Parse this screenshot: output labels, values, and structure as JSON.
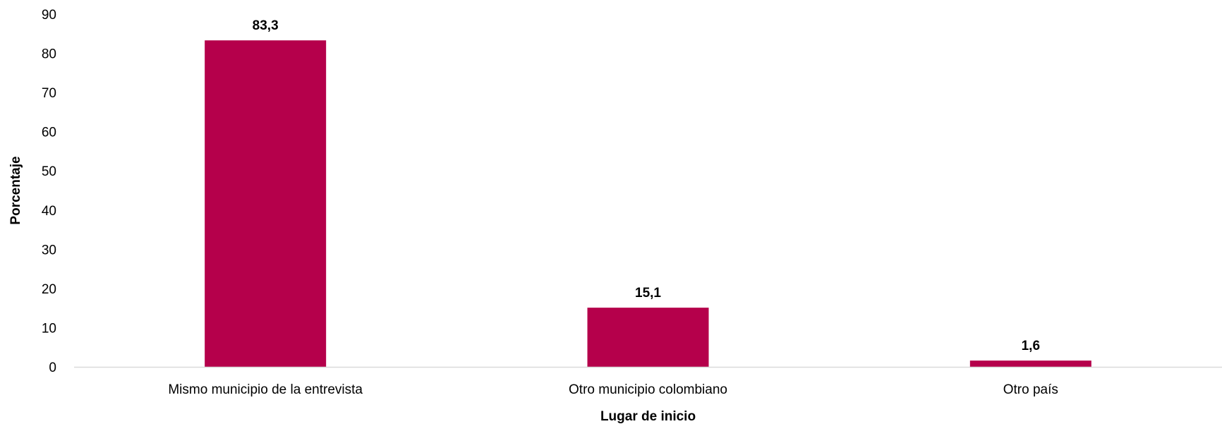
{
  "chart_data": {
    "type": "bar",
    "title": "",
    "xlabel": "Lugar de inicio",
    "ylabel": "Porcentaje",
    "categories": [
      "Mismo municipio de la entrevista",
      "Otro municipio colombiano",
      "Otro país"
    ],
    "values": [
      83.3,
      15.1,
      1.6
    ],
    "data_labels": [
      "83,3",
      "15,1",
      "1,6"
    ],
    "ylim": [
      0,
      90
    ],
    "yticks": [
      0,
      10,
      20,
      30,
      40,
      50,
      60,
      70,
      80,
      90
    ],
    "grid": false,
    "legend": "none",
    "bar_color": "#b5004b",
    "axis_color": "#d9d9d9"
  }
}
